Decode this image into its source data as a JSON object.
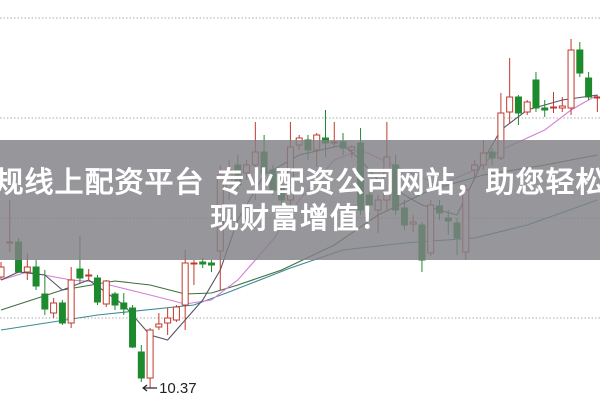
{
  "banner": {
    "line1": "正规线上配资平台 专业配资公司网站，助您轻松实",
    "line2": "现财富增值！"
  },
  "chart_data": {
    "type": "candlestick",
    "ylim": [
      10.24,
      14.25
    ],
    "gridlines": [
      11.07,
      12.07,
      13.07,
      14.07
    ],
    "grid": "dotted horizontal",
    "colors": {
      "up": "#c0392b",
      "down": "#1e8a2e",
      "ma": [
        "#3d8a98",
        "#3f6e3f",
        "#d67fd6",
        "#555566"
      ],
      "grid": "#aaaaaa"
    },
    "annotation": {
      "label": "10.37",
      "index": 17,
      "value": 10.37
    },
    "candles": [
      [
        11.48,
        11.63,
        11.45,
        11.58
      ],
      [
        11.82,
        12.25,
        11.73,
        11.83
      ],
      [
        11.83,
        11.87,
        11.52,
        11.53
      ],
      [
        11.53,
        11.72,
        11.45,
        11.58
      ],
      [
        11.58,
        11.65,
        11.35,
        11.39
      ],
      [
        11.31,
        11.55,
        11.1,
        11.16
      ],
      [
        11.12,
        11.27,
        11.07,
        11.22
      ],
      [
        11.22,
        11.25,
        11.0,
        11.02
      ],
      [
        11.02,
        11.58,
        10.97,
        11.45
      ],
      [
        11.56,
        11.89,
        11.42,
        11.47
      ],
      [
        11.49,
        11.56,
        11.45,
        11.5
      ],
      [
        11.47,
        11.5,
        11.2,
        11.23
      ],
      [
        11.21,
        11.45,
        11.18,
        11.44
      ],
      [
        11.31,
        11.33,
        11.15,
        11.2
      ],
      [
        11.22,
        11.32,
        11.1,
        11.16
      ],
      [
        11.17,
        11.2,
        10.77,
        10.78
      ],
      [
        10.73,
        10.8,
        10.43,
        10.47
      ],
      [
        10.47,
        10.97,
        10.37,
        10.95
      ],
      [
        10.98,
        11.12,
        10.95,
        11.01
      ],
      [
        11.02,
        11.17,
        10.9,
        11.07
      ],
      [
        11.05,
        11.2,
        11.03,
        11.18
      ],
      [
        11.2,
        11.75,
        10.95,
        11.62
      ],
      [
        11.61,
        11.65,
        11.4,
        11.62
      ],
      [
        11.63,
        11.67,
        11.57,
        11.61
      ],
      [
        11.62,
        11.65,
        11.53,
        11.6
      ],
      [
        11.74,
        12.6,
        11.35,
        12.5
      ],
      [
        12.35,
        12.65,
        12.25,
        12.55
      ],
      [
        12.6,
        12.7,
        12.35,
        12.4
      ],
      [
        12.52,
        12.65,
        12.45,
        12.6
      ],
      [
        12.6,
        13.03,
        12.25,
        12.73
      ],
      [
        12.73,
        12.9,
        12.45,
        12.52
      ],
      [
        12.55,
        12.6,
        12.3,
        12.35
      ],
      [
        12.4,
        12.45,
        12.15,
        12.25
      ],
      [
        12.25,
        13.03,
        12.2,
        12.78
      ],
      [
        12.8,
        12.9,
        12.75,
        12.87
      ],
      [
        12.85,
        12.9,
        12.65,
        12.75
      ],
      [
        12.75,
        12.92,
        12.58,
        12.9
      ],
      [
        12.87,
        13.15,
        12.68,
        12.82
      ],
      [
        12.82,
        13.03,
        12.78,
        12.83
      ],
      [
        12.83,
        12.92,
        12.7,
        12.77
      ],
      [
        12.75,
        12.8,
        12.67,
        12.78
      ],
      [
        12.82,
        12.97,
        12.1,
        12.15
      ],
      [
        12.3,
        12.35,
        12.1,
        12.2
      ],
      [
        12.15,
        12.3,
        11.92,
        12.25
      ],
      [
        12.25,
        13.03,
        12.15,
        12.68
      ],
      [
        12.6,
        12.7,
        12.1,
        12.15
      ],
      [
        12.17,
        12.25,
        11.95,
        12.0
      ],
      [
        12.01,
        12.1,
        11.93,
        12.03
      ],
      [
        12.0,
        12.03,
        11.53,
        11.65
      ],
      [
        11.72,
        12.25,
        11.69,
        12.2
      ],
      [
        12.19,
        12.25,
        12.05,
        12.12
      ],
      [
        12.07,
        12.15,
        11.9,
        12.04
      ],
      [
        12.02,
        12.07,
        11.7,
        11.87
      ],
      [
        11.73,
        12.4,
        11.65,
        12.35
      ],
      [
        12.55,
        12.65,
        12.45,
        12.6
      ],
      [
        12.6,
        12.85,
        12.55,
        12.72
      ],
      [
        12.73,
        12.77,
        12.6,
        12.67
      ],
      [
        12.67,
        13.32,
        12.65,
        13.12
      ],
      [
        13.13,
        13.67,
        13.02,
        13.28
      ],
      [
        13.28,
        13.3,
        13.0,
        13.12
      ],
      [
        13.13,
        13.25,
        13.1,
        13.23
      ],
      [
        13.45,
        13.53,
        13.13,
        13.17
      ],
      [
        13.17,
        13.25,
        13.08,
        13.15
      ],
      [
        13.17,
        13.33,
        13.12,
        13.18
      ],
      [
        13.17,
        13.28,
        13.13,
        13.19
      ],
      [
        13.17,
        13.86,
        13.1,
        13.75
      ],
      [
        13.75,
        13.83,
        13.48,
        13.52
      ],
      [
        13.47,
        13.53,
        13.25,
        13.28
      ],
      [
        13.27,
        13.3,
        13.13,
        13.28
      ]
    ],
    "moving_averages": [
      [
        [
          0,
          10.95
        ],
        [
          11,
          11.1
        ],
        [
          22,
          11.2
        ],
        [
          26,
          11.33
        ],
        [
          33,
          11.57
        ],
        [
          39,
          11.75
        ],
        [
          46,
          11.82
        ],
        [
          54,
          11.87
        ],
        [
          60,
          12.0
        ],
        [
          68,
          12.25
        ]
      ],
      [
        [
          0,
          11.15
        ],
        [
          7,
          11.35
        ],
        [
          13,
          11.44
        ],
        [
          17,
          11.4
        ],
        [
          21,
          11.31
        ],
        [
          24,
          11.32
        ],
        [
          27,
          11.4
        ],
        [
          32,
          11.55
        ],
        [
          38,
          11.8
        ],
        [
          43,
          12.1
        ],
        [
          49,
          12.35
        ],
        [
          55,
          12.5
        ],
        [
          62,
          12.6
        ],
        [
          68,
          12.7
        ]
      ],
      [
        [
          0,
          11.45
        ],
        [
          3,
          11.53
        ],
        [
          8,
          11.45
        ],
        [
          11,
          11.43
        ],
        [
          17,
          11.3
        ],
        [
          21,
          11.21
        ],
        [
          24,
          11.25
        ],
        [
          27,
          11.45
        ],
        [
          31,
          11.85
        ],
        [
          34,
          12.25
        ],
        [
          38,
          12.65
        ],
        [
          41,
          12.75
        ],
        [
          46,
          12.55
        ],
        [
          50,
          12.4
        ],
        [
          54,
          12.55
        ],
        [
          57,
          12.75
        ],
        [
          62,
          12.95
        ],
        [
          65,
          13.15
        ],
        [
          68,
          13.3
        ]
      ],
      [
        [
          0,
          11.45
        ],
        [
          2,
          11.53
        ],
        [
          5,
          11.5
        ],
        [
          7,
          11.35
        ],
        [
          10,
          11.45
        ],
        [
          14,
          11.2
        ],
        [
          17,
          10.9
        ],
        [
          19,
          10.85
        ],
        [
          21,
          11.05
        ],
        [
          23,
          11.25
        ],
        [
          25,
          11.55
        ],
        [
          27,
          12.05
        ],
        [
          30,
          12.5
        ],
        [
          34,
          12.7
        ],
        [
          39,
          12.8
        ],
        [
          41,
          12.65
        ],
        [
          43,
          12.45
        ],
        [
          46,
          12.3
        ],
        [
          48,
          12.2
        ],
        [
          50,
          12.15
        ],
        [
          52,
          12.1
        ],
        [
          55,
          12.65
        ],
        [
          57,
          12.95
        ],
        [
          60,
          13.15
        ],
        [
          64,
          13.25
        ],
        [
          68,
          13.3
        ]
      ]
    ]
  }
}
